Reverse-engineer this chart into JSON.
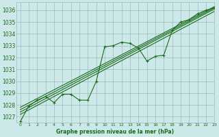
{
  "title": "Graphe pression niveau de la mer (hPa)",
  "bg_color": "#cce8e8",
  "grid_color": "#99bbbb",
  "line_color": "#1a6b1a",
  "text_color": "#1a6b1a",
  "xlim": [
    -0.5,
    23
  ],
  "ylim": [
    1026.5,
    1036.7
  ],
  "yticks": [
    1027,
    1028,
    1029,
    1030,
    1031,
    1032,
    1033,
    1034,
    1035,
    1036
  ],
  "xticks": [
    0,
    1,
    2,
    3,
    4,
    5,
    6,
    7,
    8,
    9,
    10,
    11,
    12,
    13,
    14,
    15,
    16,
    17,
    18,
    19,
    20,
    21,
    22,
    23
  ],
  "main_line": [
    [
      0,
      1026.6
    ],
    [
      1,
      1027.9
    ],
    [
      2,
      1028.4
    ],
    [
      3,
      1028.7
    ],
    [
      4,
      1028.2
    ],
    [
      5,
      1028.9
    ],
    [
      6,
      1028.9
    ],
    [
      7,
      1028.4
    ],
    [
      8,
      1028.4
    ],
    [
      9,
      1030.0
    ],
    [
      10,
      1032.9
    ],
    [
      11,
      1033.0
    ],
    [
      12,
      1033.3
    ],
    [
      13,
      1033.2
    ],
    [
      14,
      1032.8
    ],
    [
      15,
      1031.7
    ],
    [
      16,
      1032.1
    ],
    [
      17,
      1032.2
    ],
    [
      18,
      1034.3
    ],
    [
      19,
      1035.0
    ],
    [
      20,
      1035.2
    ],
    [
      21,
      1035.7
    ],
    [
      22,
      1036.0
    ],
    [
      23,
      1036.2
    ]
  ],
  "smooth_line1": [
    [
      0,
      1027.6
    ],
    [
      23,
      1036.2
    ]
  ],
  "smooth_line2": [
    [
      0,
      1027.8
    ],
    [
      23,
      1036.3
    ]
  ],
  "smooth_line3": [
    [
      0,
      1027.4
    ],
    [
      23,
      1036.1
    ]
  ],
  "smooth_line4": [
    [
      0,
      1027.2
    ],
    [
      23,
      1035.9
    ]
  ]
}
